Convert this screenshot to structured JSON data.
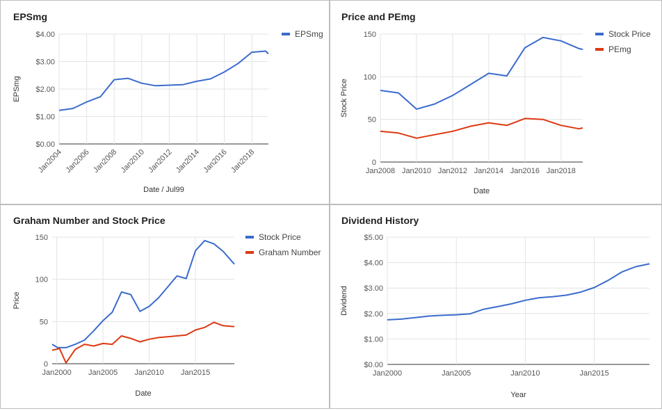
{
  "colors": {
    "blue": "#3b6bcc",
    "red": "#dc3912",
    "grid": "#e3e3e3",
    "axis": "#333333"
  },
  "chart_data": [
    {
      "type": "line",
      "title": "EPSmg",
      "xlabel": "Date / Jul99",
      "ylabel": "EPSmg",
      "xticks": [
        "Jan2004",
        "Jan2006",
        "Jan2008",
        "Jan2010",
        "Jan2012",
        "Jan2014",
        "Jan2016",
        "Jan2018"
      ],
      "yticks": [
        "$0.00",
        "$1.00",
        "$2.00",
        "$3.00",
        "$4.00"
      ],
      "xlim": [
        2004,
        2019.2
      ],
      "ylim": [
        0,
        4
      ],
      "legend": "top-right",
      "series": [
        {
          "name": "EPSmg",
          "color": "#3b6bcc",
          "x": [
            2004,
            2005,
            2006,
            2007,
            2008,
            2009,
            2010,
            2011,
            2012,
            2013,
            2014,
            2015,
            2016,
            2017,
            2018,
            2019,
            2019.2
          ],
          "y": [
            1.22,
            1.29,
            1.53,
            1.72,
            2.34,
            2.39,
            2.21,
            2.12,
            2.14,
            2.16,
            2.28,
            2.37,
            2.62,
            2.93,
            3.34,
            3.38,
            3.28
          ]
        }
      ]
    },
    {
      "type": "line",
      "title": "Price and PEmg",
      "xlabel": "Date",
      "ylabel": "Stock Price",
      "xticks": [
        "Jan2008",
        "Jan2010",
        "Jan2012",
        "Jan2014",
        "Jan2016",
        "Jan2018"
      ],
      "yticks": [
        "0",
        "50",
        "100",
        "150"
      ],
      "xlim": [
        2008,
        2019.2
      ],
      "ylim": [
        0,
        150
      ],
      "legend": "top-right",
      "series": [
        {
          "name": "Stock Price",
          "color": "#3b6bcc",
          "x": [
            2008,
            2009,
            2010,
            2011,
            2012,
            2013,
            2014,
            2015,
            2016,
            2017,
            2018,
            2019,
            2019.2
          ],
          "y": [
            84,
            81,
            62,
            68,
            78,
            91,
            104,
            101,
            134,
            146,
            142,
            133,
            132
          ]
        },
        {
          "name": "PEmg",
          "color": "#dc3912",
          "x": [
            2008,
            2009,
            2010,
            2011,
            2012,
            2013,
            2014,
            2015,
            2016,
            2017,
            2018,
            2019,
            2019.2
          ],
          "y": [
            36,
            34,
            28,
            32,
            36,
            42,
            46,
            43,
            51,
            50,
            43,
            39,
            40
          ]
        }
      ]
    },
    {
      "type": "line",
      "title": "Graham Number and Stock Price",
      "xlabel": "Date",
      "ylabel": "Price",
      "xticks": [
        "Jan2000",
        "Jan2005",
        "Jan2010",
        "Jan2015"
      ],
      "yticks": [
        "0",
        "50",
        "100",
        "150"
      ],
      "xlim": [
        1999.5,
        2019.2
      ],
      "ylim": [
        0,
        150
      ],
      "legend": "top-right",
      "series": [
        {
          "name": "Stock Price",
          "color": "#3b6bcc",
          "x": [
            1999.5,
            2000.1,
            2001,
            2002,
            2003,
            2004,
            2005,
            2006,
            2007,
            2008,
            2009,
            2010,
            2011,
            2012,
            2013,
            2014,
            2015,
            2016,
            2017,
            2018,
            2019.2
          ],
          "y": [
            23,
            19,
            19,
            23,
            28,
            39,
            51,
            61,
            85,
            82,
            62,
            68,
            78,
            91,
            104,
            101,
            134,
            146,
            142,
            133,
            118
          ]
        },
        {
          "name": "Graham Number",
          "color": "#dc3912",
          "x": [
            1999.5,
            2000.3,
            2001,
            2002,
            2003,
            2004,
            2005,
            2006,
            2007,
            2008,
            2009,
            2010,
            2011,
            2012,
            2013,
            2014,
            2015,
            2016,
            2017,
            2018,
            2019.2
          ],
          "y": [
            16,
            18,
            1,
            17,
            23,
            21,
            24,
            23,
            33,
            30,
            26,
            29,
            31,
            32,
            33,
            34,
            40,
            43,
            49,
            45,
            44
          ]
        }
      ]
    },
    {
      "type": "line",
      "title": "Dividend History",
      "xlabel": "Year",
      "ylabel": "Dividend",
      "xticks": [
        "Jan2000",
        "Jan2005",
        "Jan2010",
        "Jan2015"
      ],
      "yticks": [
        "$0.00",
        "$1.00",
        "$2.00",
        "$3.00",
        "$4.00",
        "$5.00"
      ],
      "xlim": [
        2000,
        2019
      ],
      "ylim": [
        0,
        5
      ],
      "series": [
        {
          "name": "",
          "color": "#3b6bcc",
          "x": [
            2000,
            2001,
            2002,
            2003,
            2004,
            2005,
            2006,
            2007,
            2008,
            2009,
            2010,
            2011,
            2012,
            2013,
            2014,
            2015,
            2016,
            2017,
            2018,
            2019
          ],
          "y": [
            1.75,
            1.78,
            1.84,
            1.9,
            1.93,
            1.95,
            1.99,
            2.17,
            2.27,
            2.38,
            2.52,
            2.62,
            2.66,
            2.72,
            2.84,
            3.02,
            3.3,
            3.63,
            3.84,
            3.95
          ]
        }
      ]
    }
  ]
}
